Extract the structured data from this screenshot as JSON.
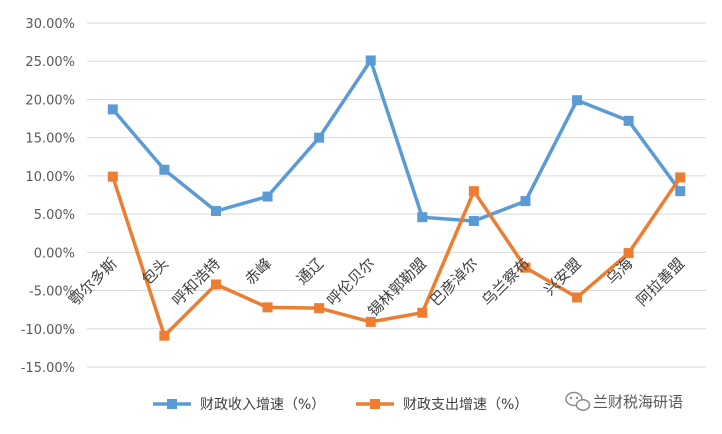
{
  "chart_data": {
    "type": "line",
    "title": "",
    "xlabel": "",
    "ylabel": "",
    "categories": [
      "鄂尔多斯",
      "包头",
      "呼和浩特",
      "赤峰",
      "通辽",
      "呼伦贝尔",
      "锡林郭勒盟",
      "巴彦淖尔",
      "乌兰察布",
      "兴安盟",
      "乌海",
      "阿拉善盟"
    ],
    "y_ticks": [
      "30.00%",
      "25.00%",
      "20.00%",
      "15.00%",
      "10.00%",
      "5.00%",
      "0.00%",
      "-5.00%",
      "-10.00%",
      "-15.00%"
    ],
    "ylim": [
      -15,
      30
    ],
    "y_unit": "%",
    "grid": true,
    "legend_position": "bottom",
    "series": [
      {
        "name": "财政收入增速（%）",
        "color": "#5B9BD5",
        "values": [
          18.7,
          10.8,
          5.4,
          7.3,
          15.0,
          25.1,
          4.6,
          4.1,
          6.7,
          19.9,
          17.2,
          8.0
        ]
      },
      {
        "name": "财政支出增速（%）",
        "color": "#ED7D31",
        "values": [
          9.9,
          -10.9,
          -4.2,
          -7.2,
          -7.3,
          -9.1,
          -7.9,
          8.0,
          -2.0,
          -5.9,
          -0.1,
          9.8
        ]
      }
    ]
  },
  "watermark": {
    "text": "兰财税海研语",
    "icon": "wechat-icon"
  }
}
